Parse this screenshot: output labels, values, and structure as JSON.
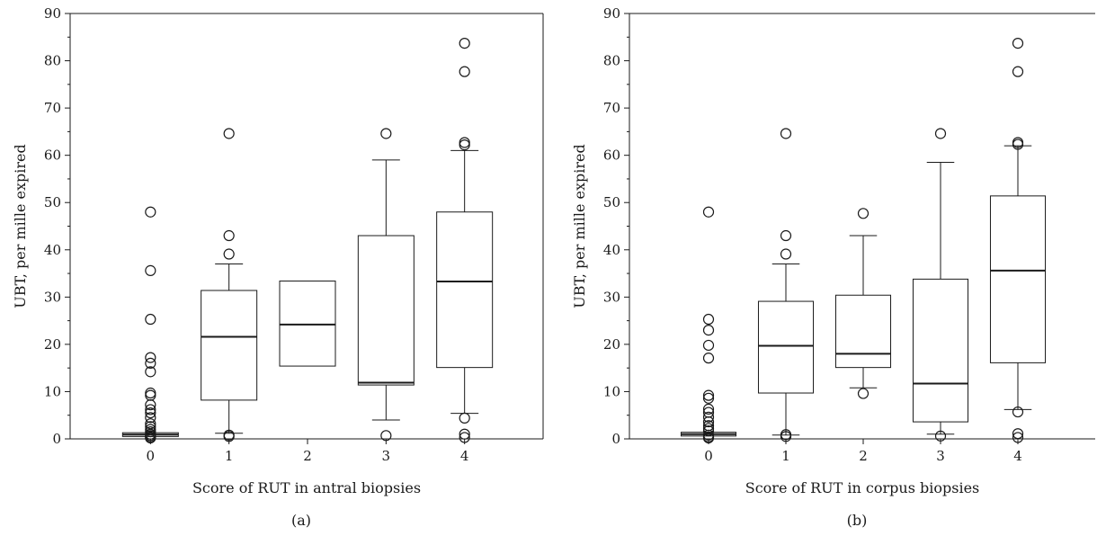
{
  "chart_data": [
    {
      "type": "box",
      "panel_label": "(a)",
      "xlabel": "Score of RUT in antral biopsies",
      "ylabel": "UBT, per mille expired",
      "ylim": [
        0,
        90
      ],
      "yticks": [
        0,
        10,
        20,
        30,
        40,
        50,
        60,
        70,
        80,
        90
      ],
      "categories": [
        "0",
        "1",
        "2",
        "3",
        "4"
      ],
      "boxes": [
        {
          "q1": 0.5,
          "median": 0.9,
          "q3": 1.3,
          "whisker_low": null,
          "whisker_high": null,
          "outliers": [
            0.2,
            0.4,
            0.7,
            1.0,
            1.5,
            2.0,
            2.6,
            3.2,
            4.5,
            5.5,
            6.2,
            7.2,
            9.2,
            9.7,
            14.2,
            16.0,
            17.2,
            25.3,
            35.6,
            48.0
          ]
        },
        {
          "q1": 8.2,
          "median": 21.6,
          "q3": 31.4,
          "whisker_low": 1.2,
          "whisker_high": 37.0,
          "outliers": [
            0.5,
            0.8,
            39.1,
            43.0,
            64.6
          ]
        },
        {
          "q1": 15.4,
          "median": 24.2,
          "q3": 33.4,
          "whisker_low": null,
          "whisker_high": null,
          "outliers": []
        },
        {
          "q1": 11.4,
          "median": 11.9,
          "q3": 43.0,
          "whisker_low": 4.0,
          "whisker_high": 59.0,
          "outliers": [
            0.7,
            64.6
          ]
        },
        {
          "q1": 15.1,
          "median": 33.3,
          "q3": 48.0,
          "whisker_low": 5.4,
          "whisker_high": 61.0,
          "outliers": [
            0.3,
            1.0,
            4.4,
            62.2,
            62.7,
            77.7,
            83.7
          ]
        }
      ]
    },
    {
      "type": "box",
      "panel_label": "(b)",
      "xlabel": "Score of RUT in corpus biopsies",
      "ylabel": "UBT, per mille expired",
      "ylim": [
        0,
        90
      ],
      "yticks": [
        0,
        10,
        20,
        30,
        40,
        50,
        60,
        70,
        80,
        90
      ],
      "categories": [
        "0",
        "1",
        "2",
        "3",
        "4"
      ],
      "boxes": [
        {
          "q1": 0.6,
          "median": 1.0,
          "q3": 1.4,
          "whisker_low": null,
          "whisker_high": null,
          "outliers": [
            0.2,
            0.4,
            0.8,
            1.7,
            2.2,
            2.8,
            3.6,
            4.6,
            5.6,
            6.3,
            8.6,
            9.2,
            17.1,
            19.8,
            23.0,
            25.3,
            48.0
          ]
        },
        {
          "q1": 9.7,
          "median": 19.7,
          "q3": 29.1,
          "whisker_low": 0.8,
          "whisker_high": 37.0,
          "outliers": [
            0.5,
            0.9,
            39.1,
            43.0,
            64.6
          ]
        },
        {
          "q1": 15.1,
          "median": 18.0,
          "q3": 30.4,
          "whisker_low": 10.8,
          "whisker_high": 43.0,
          "outliers": [
            9.6,
            47.7
          ]
        },
        {
          "q1": 3.6,
          "median": 11.7,
          "q3": 33.8,
          "whisker_low": 1.0,
          "whisker_high": 58.5,
          "outliers": [
            0.6,
            64.6
          ]
        },
        {
          "q1": 16.1,
          "median": 35.6,
          "q3": 51.4,
          "whisker_low": 6.2,
          "whisker_high": 62.0,
          "outliers": [
            0.3,
            1.1,
            5.7,
            62.3,
            62.7,
            77.7,
            83.7
          ]
        }
      ]
    }
  ]
}
